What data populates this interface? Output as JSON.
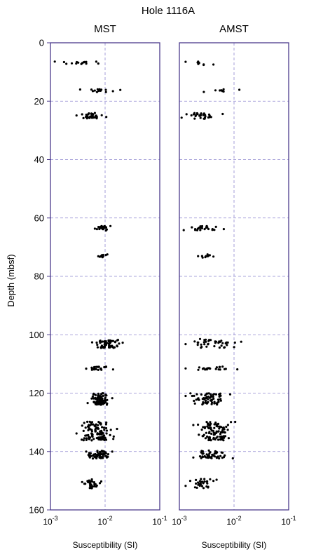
{
  "title": "Hole 1116A",
  "colors": {
    "frame": "#4b3a8c",
    "grid": "#8f88d0",
    "point": "#000000"
  },
  "shared": {
    "ylabel": "Depth (mbsf)",
    "ylim": [
      0,
      160
    ],
    "yticks": [
      0,
      20,
      40,
      60,
      80,
      100,
      120,
      140,
      160
    ],
    "xscale": "log",
    "xlim": [
      0.001,
      0.1
    ],
    "xticks": [
      {
        "value": 0.001,
        "mantissa": "10",
        "exponent": "-3"
      },
      {
        "value": 0.01,
        "mantissa": "10",
        "exponent": "-2"
      },
      {
        "value": 0.1,
        "mantissa": "10",
        "exponent": "-1"
      }
    ],
    "xlabel": "Susceptibility  (SI)",
    "grid": true
  },
  "chart_data": [
    {
      "type": "scatter",
      "title": "MST",
      "xlabel": "Susceptibility  (SI)",
      "ylabel": "Depth (mbsf)",
      "xscale": "log",
      "xlim": [
        0.001,
        0.1
      ],
      "ylim": [
        0,
        160
      ],
      "grid": true,
      "clusters": [
        {
          "depth": 7,
          "depth_spread": 0.6,
          "x_min": 0.0012,
          "x_max": 0.0075,
          "n": 16
        },
        {
          "depth": 16.4,
          "depth_spread": 0.5,
          "x_min": 0.0035,
          "x_max": 0.019,
          "n": 14
        },
        {
          "depth": 25,
          "depth_spread": 1.0,
          "x_min": 0.003,
          "x_max": 0.0105,
          "n": 34
        },
        {
          "depth": 63.5,
          "depth_spread": 0.8,
          "x_min": 0.0065,
          "x_max": 0.0125,
          "n": 24
        },
        {
          "depth": 73,
          "depth_spread": 0.6,
          "x_min": 0.0075,
          "x_max": 0.011,
          "n": 14
        },
        {
          "depth": 103,
          "depth_spread": 1.6,
          "x_min": 0.0058,
          "x_max": 0.021,
          "n": 60
        },
        {
          "depth": 111.5,
          "depth_spread": 0.7,
          "x_min": 0.0045,
          "x_max": 0.014,
          "n": 22
        },
        {
          "depth": 122,
          "depth_spread": 2.0,
          "x_min": 0.0048,
          "x_max": 0.0135,
          "n": 80
        },
        {
          "depth": 133,
          "depth_spread": 3.2,
          "x_min": 0.003,
          "x_max": 0.0165,
          "n": 110
        },
        {
          "depth": 141,
          "depth_spread": 1.4,
          "x_min": 0.0045,
          "x_max": 0.0135,
          "n": 60
        },
        {
          "depth": 151,
          "depth_spread": 1.6,
          "x_min": 0.0038,
          "x_max": 0.0085,
          "n": 34
        }
      ]
    },
    {
      "type": "scatter",
      "title": "AMST",
      "xlabel": "Susceptibility  (SI)",
      "ylabel": "",
      "xscale": "log",
      "xlim": [
        0.001,
        0.1
      ],
      "ylim": [
        0,
        160
      ],
      "grid": true,
      "clusters": [
        {
          "depth": 7,
          "depth_spread": 0.6,
          "x_min": 0.0013,
          "x_max": 0.0042,
          "n": 8
        },
        {
          "depth": 16.4,
          "depth_spread": 0.5,
          "x_min": 0.0028,
          "x_max": 0.0125,
          "n": 9
        },
        {
          "depth": 25,
          "depth_spread": 1.0,
          "x_min": 0.0011,
          "x_max": 0.0062,
          "n": 30
        },
        {
          "depth": 63.5,
          "depth_spread": 0.8,
          "x_min": 0.0012,
          "x_max": 0.0065,
          "n": 24
        },
        {
          "depth": 73,
          "depth_spread": 0.6,
          "x_min": 0.0022,
          "x_max": 0.0042,
          "n": 10
        },
        {
          "depth": 103,
          "depth_spread": 1.6,
          "x_min": 0.0013,
          "x_max": 0.0135,
          "n": 40
        },
        {
          "depth": 111.5,
          "depth_spread": 0.7,
          "x_min": 0.0013,
          "x_max": 0.0115,
          "n": 22
        },
        {
          "depth": 122,
          "depth_spread": 2.0,
          "x_min": 0.0013,
          "x_max": 0.0085,
          "n": 70
        },
        {
          "depth": 133,
          "depth_spread": 3.2,
          "x_min": 0.0018,
          "x_max": 0.0105,
          "n": 100
        },
        {
          "depth": 141,
          "depth_spread": 1.4,
          "x_min": 0.0018,
          "x_max": 0.0095,
          "n": 50
        },
        {
          "depth": 151,
          "depth_spread": 1.6,
          "x_min": 0.0013,
          "x_max": 0.0048,
          "n": 30
        }
      ]
    }
  ]
}
